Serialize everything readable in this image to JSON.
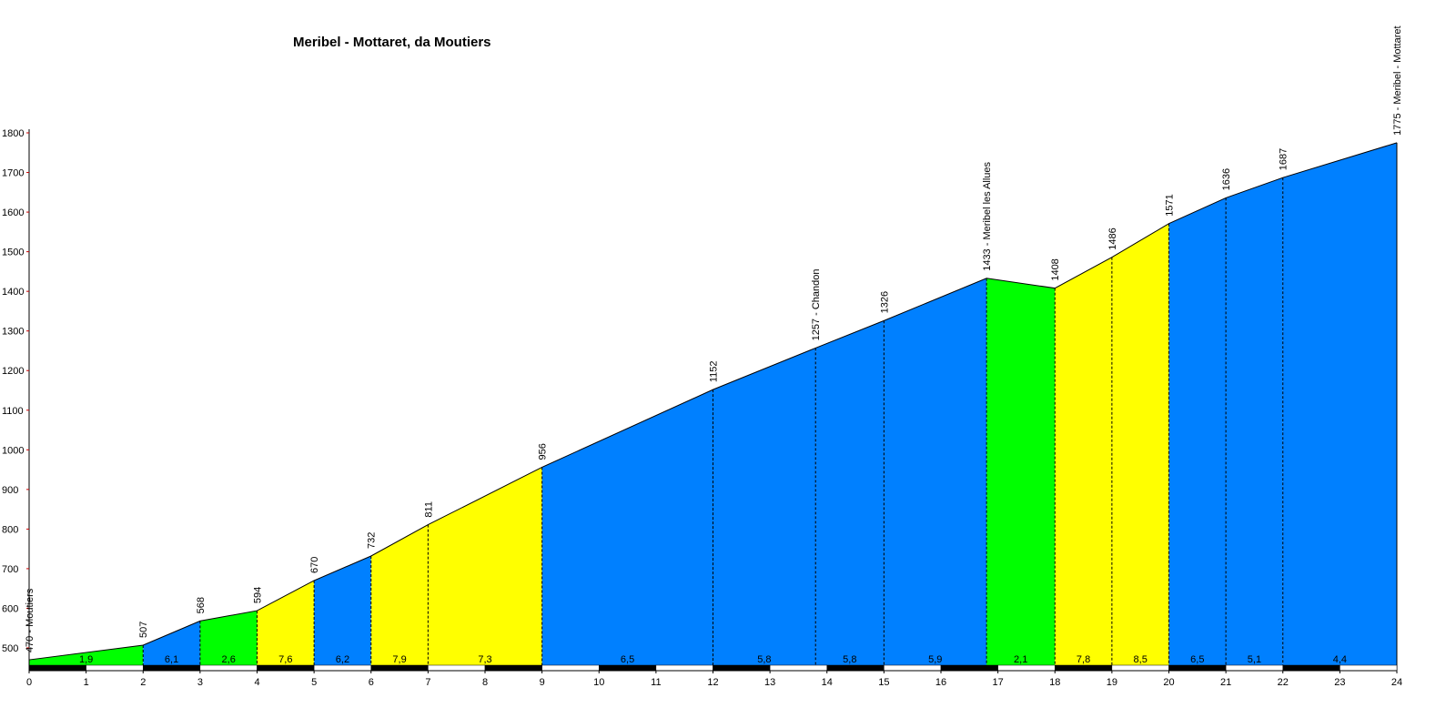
{
  "chart_data": {
    "type": "area",
    "title": "Meribel - Mottaret, da Moutiers",
    "xlabel": "",
    "ylabel": "",
    "xlim": [
      0,
      24
    ],
    "ylim": [
      440,
      1800
    ],
    "x_ticks": [
      "0",
      "1",
      "2",
      "3",
      "4",
      "5",
      "6",
      "7",
      "8",
      "9",
      "10",
      "11",
      "12",
      "13",
      "14",
      "15",
      "16",
      "17",
      "18",
      "19",
      "20",
      "21",
      "22",
      "23",
      "24"
    ],
    "y_ticks": [
      "500",
      "600",
      "700",
      "800",
      "900",
      "1000",
      "1100",
      "1200",
      "1300",
      "1400",
      "1500",
      "1600",
      "1700",
      "1800"
    ],
    "profile": [
      {
        "km": 0,
        "alt": 470,
        "label": "470 - Moutiers"
      },
      {
        "km": 2,
        "alt": 507,
        "label": "507"
      },
      {
        "km": 3,
        "alt": 568,
        "label": "568"
      },
      {
        "km": 4,
        "alt": 594,
        "label": "594"
      },
      {
        "km": 5,
        "alt": 670,
        "label": "670"
      },
      {
        "km": 6,
        "alt": 732,
        "label": "732"
      },
      {
        "km": 7,
        "alt": 811,
        "label": "811"
      },
      {
        "km": 9,
        "alt": 956,
        "label": "956"
      },
      {
        "km": 12,
        "alt": 1152,
        "label": "1152"
      },
      {
        "km": 13.8,
        "alt": 1257,
        "label": "1257 - Chandon"
      },
      {
        "km": 15,
        "alt": 1326,
        "label": "1326"
      },
      {
        "km": 16.8,
        "alt": 1433,
        "label": "1433 - Meribel les Allues"
      },
      {
        "km": 18,
        "alt": 1408,
        "label": "1408"
      },
      {
        "km": 19,
        "alt": 1486,
        "label": "1486"
      },
      {
        "km": 20,
        "alt": 1571,
        "label": "1571"
      },
      {
        "km": 21,
        "alt": 1636,
        "label": "1636"
      },
      {
        "km": 22,
        "alt": 1687,
        "label": "1687"
      },
      {
        "km": 24,
        "alt": 1775,
        "label": "1775 - Meribel - Mottaret"
      }
    ],
    "segments": [
      {
        "from": 0,
        "to": 2,
        "grade": "1,9",
        "color": "#00ff00"
      },
      {
        "from": 2,
        "to": 3,
        "grade": "6,1",
        "color": "#0080ff"
      },
      {
        "from": 3,
        "to": 4,
        "grade": "2,6",
        "color": "#00ff00"
      },
      {
        "from": 4,
        "to": 5,
        "grade": "7,6",
        "color": "#ffff00"
      },
      {
        "from": 5,
        "to": 6,
        "grade": "6,2",
        "color": "#0080ff"
      },
      {
        "from": 6,
        "to": 7,
        "grade": "7,9",
        "color": "#ffff00"
      },
      {
        "from": 7,
        "to": 9,
        "grade": "7,3",
        "color": "#ffff00"
      },
      {
        "from": 9,
        "to": 12,
        "grade": "6,5",
        "color": "#0080ff"
      },
      {
        "from": 12,
        "to": 13.8,
        "grade": "5,8",
        "color": "#0080ff"
      },
      {
        "from": 13.8,
        "to": 15,
        "grade": "5,8",
        "color": "#0080ff"
      },
      {
        "from": 15,
        "to": 16.8,
        "grade": "5,9",
        "color": "#0080ff"
      },
      {
        "from": 16.8,
        "to": 18,
        "grade": "2,1",
        "color": "#00ff00"
      },
      {
        "from": 18,
        "to": 19,
        "grade": "7,8",
        "color": "#ffff00"
      },
      {
        "from": 19,
        "to": 20,
        "grade": "8,5",
        "color": "#ffff00"
      },
      {
        "from": 20,
        "to": 21,
        "grade": "6,5",
        "color": "#0080ff"
      },
      {
        "from": 21,
        "to": 22,
        "grade": "5,1",
        "color": "#0080ff"
      },
      {
        "from": 22,
        "to": 24,
        "grade": "4,4",
        "color": "#0080ff"
      }
    ],
    "grid": false,
    "colors": {
      "easy": "#00ff00",
      "moderate": "#0080ff",
      "hard": "#ffff00",
      "axis_tick": "#cc0000"
    }
  }
}
